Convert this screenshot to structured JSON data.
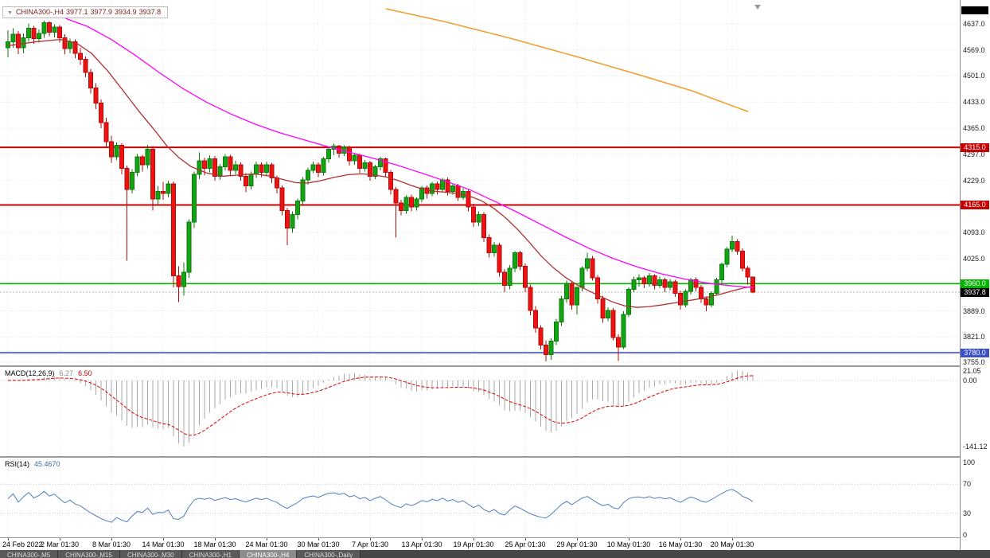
{
  "header": {
    "collapse_icon": "▼",
    "symbol": "CHINA300-,H4",
    "open": "3977.1",
    "high": "3977.9",
    "low": "3934.9",
    "close": "3937.8"
  },
  "tab_bar": {
    "tabs": [
      {
        "label": "CHINA300-,M5",
        "active": false
      },
      {
        "label": "CHINA300-,M15",
        "active": false
      },
      {
        "label": "CHINA300-,M30",
        "active": false
      },
      {
        "label": "CHINA300-,H1",
        "active": false
      },
      {
        "label": "CHINA300-,H4",
        "active": true
      },
      {
        "label": "CHINA300-,Daily",
        "active": false
      }
    ]
  },
  "chart_data": {
    "type": "candlestick",
    "symbol": "CHINA300-,H4",
    "timeframe": "H4",
    "x_start": 10,
    "x_step": 6.5,
    "bars_per_label": 10,
    "price_ylim": [
      3747,
      4699
    ],
    "price_ticks": [
      "4637.0",
      "4569.0",
      "4501.0",
      "4433.0",
      "4365.0",
      "4297.0",
      "4229.0",
      "4093.0",
      "4025.0",
      "3889.0",
      "3821.0",
      "3755.0"
    ],
    "time_labels": [
      "24 Feb 2022",
      "2 Mar 01:30",
      "8 Mar 01:30",
      "14 Mar 01:30",
      "18 Mar 01:30",
      "24 Mar 01:30",
      "30 Mar 01:30",
      "7 Apr 01:30",
      "13 Apr 01:30",
      "19 Apr 01:30",
      "25 Apr 01:30",
      "29 Apr 01:30",
      "10 May 01:30",
      "16 May 01:30",
      "20 May 01:30"
    ],
    "levels": [
      {
        "value": 4315.0,
        "label": "4315.0",
        "color": "#c80000",
        "width": 2
      },
      {
        "value": 4165.0,
        "label": "4165.0",
        "color": "#c80000",
        "width": 2
      },
      {
        "value": 3960.0,
        "label": "3960.0",
        "color": "#00b400",
        "width": 1.6
      },
      {
        "value": 3780.0,
        "label": "3780.0",
        "color": "#3c50c8",
        "width": 1.6
      }
    ],
    "current_price": {
      "value": 3937.8,
      "label": "3937.8",
      "bg": "#000000",
      "line_color": "#b0b0b0"
    },
    "candle_colors": {
      "up_fill": "#12a412",
      "up_stroke": "#0a7d0a",
      "down_fill": "#ee1212",
      "down_stroke": "#b40a0a"
    },
    "overlays": [
      {
        "name": "ma-fast",
        "color": "#b03030",
        "width": 1.3,
        "points": [
          [
            10,
            4580
          ],
          [
            45,
            4590
          ],
          [
            75,
            4596
          ],
          [
            95,
            4588
          ],
          [
            115,
            4560
          ],
          [
            135,
            4515
          ],
          [
            155,
            4462
          ],
          [
            175,
            4408
          ],
          [
            195,
            4358
          ],
          [
            210,
            4318
          ],
          [
            225,
            4288
          ],
          [
            240,
            4265
          ],
          [
            260,
            4248
          ],
          [
            280,
            4240
          ],
          [
            300,
            4243
          ],
          [
            320,
            4246
          ],
          [
            340,
            4240
          ],
          [
            358,
            4230
          ],
          [
            372,
            4223
          ],
          [
            386,
            4222
          ],
          [
            400,
            4227
          ],
          [
            420,
            4237
          ],
          [
            438,
            4244
          ],
          [
            455,
            4246
          ],
          [
            470,
            4243
          ],
          [
            485,
            4238
          ],
          [
            500,
            4229
          ],
          [
            515,
            4217
          ],
          [
            530,
            4207
          ],
          [
            545,
            4201
          ],
          [
            560,
            4198
          ],
          [
            575,
            4195
          ],
          [
            590,
            4188
          ],
          [
            605,
            4176
          ],
          [
            620,
            4157
          ],
          [
            635,
            4132
          ],
          [
            650,
            4102
          ],
          [
            665,
            4068
          ],
          [
            680,
            4032
          ],
          [
            695,
            4002
          ],
          [
            710,
            3977
          ],
          [
            725,
            3957
          ],
          [
            740,
            3941
          ],
          [
            755,
            3926
          ],
          [
            770,
            3912
          ],
          [
            785,
            3902
          ],
          [
            800,
            3898
          ],
          [
            815,
            3900
          ],
          [
            830,
            3904
          ],
          [
            845,
            3909
          ],
          [
            860,
            3914
          ],
          [
            875,
            3919
          ],
          [
            890,
            3925
          ],
          [
            905,
            3932
          ],
          [
            920,
            3941
          ],
          [
            935,
            3949
          ],
          [
            946,
            3953
          ]
        ]
      },
      {
        "name": "ma-slow",
        "color": "#ff00ff",
        "width": 1.3,
        "points": [
          [
            55,
            4678
          ],
          [
            85,
            4649
          ],
          [
            110,
            4630
          ],
          [
            140,
            4596
          ],
          [
            170,
            4555
          ],
          [
            200,
            4510
          ],
          [
            230,
            4468
          ],
          [
            260,
            4432
          ],
          [
            290,
            4402
          ],
          [
            320,
            4376
          ],
          [
            350,
            4354
          ],
          [
            380,
            4336
          ],
          [
            410,
            4318
          ],
          [
            440,
            4302
          ],
          [
            470,
            4286
          ],
          [
            500,
            4268
          ],
          [
            530,
            4248
          ],
          [
            560,
            4227
          ],
          [
            590,
            4205
          ],
          [
            620,
            4176
          ],
          [
            650,
            4146
          ],
          [
            680,
            4114
          ],
          [
            710,
            4082
          ],
          [
            740,
            4052
          ],
          [
            770,
            4026
          ],
          [
            800,
            4004
          ],
          [
            830,
            3986
          ],
          [
            860,
            3972
          ],
          [
            890,
            3961
          ],
          [
            920,
            3954
          ],
          [
            946,
            3950
          ]
        ]
      },
      {
        "name": "trendline-orange",
        "color": "#f0a030",
        "width": 1.6,
        "points": [
          [
            485,
            4676
          ],
          [
            560,
            4642
          ],
          [
            640,
            4600
          ],
          [
            720,
            4554
          ],
          [
            800,
            4506
          ],
          [
            870,
            4462
          ],
          [
            940,
            4408
          ]
        ]
      }
    ],
    "candles": [
      [
        4575,
        4620,
        4550,
        4590
      ],
      [
        4590,
        4625,
        4575,
        4610
      ],
      [
        4610,
        4618,
        4558,
        4575
      ],
      [
        4575,
        4612,
        4560,
        4600
      ],
      [
        4600,
        4638,
        4590,
        4625
      ],
      [
        4625,
        4632,
        4585,
        4598
      ],
      [
        4598,
        4622,
        4588,
        4612
      ],
      [
        4612,
        4645,
        4600,
        4640
      ],
      [
        4640,
        4644,
        4605,
        4615
      ],
      [
        4615,
        4636,
        4602,
        4628
      ],
      [
        4628,
        4634,
        4588,
        4600
      ],
      [
        4600,
        4610,
        4558,
        4572
      ],
      [
        4572,
        4598,
        4560,
        4590
      ],
      [
        4590,
        4596,
        4548,
        4560
      ],
      [
        4560,
        4575,
        4530,
        4545
      ],
      [
        4545,
        4552,
        4498,
        4510
      ],
      [
        4510,
        4520,
        4455,
        4470
      ],
      [
        4470,
        4482,
        4415,
        4430
      ],
      [
        4430,
        4440,
        4365,
        4380
      ],
      [
        4380,
        4392,
        4315,
        4330
      ],
      [
        4330,
        4345,
        4275,
        4290
      ],
      [
        4290,
        4328,
        4282,
        4320
      ],
      [
        4320,
        4326,
        4245,
        4260
      ],
      [
        4260,
        4268,
        4020,
        4205
      ],
      [
        4205,
        4258,
        4195,
        4250
      ],
      [
        4250,
        4298,
        4240,
        4290
      ],
      [
        4290,
        4296,
        4252,
        4270
      ],
      [
        4270,
        4322,
        4260,
        4310
      ],
      [
        4310,
        4318,
        4150,
        4180
      ],
      [
        4180,
        4215,
        4165,
        4200
      ],
      [
        4200,
        4225,
        4178,
        4195
      ],
      [
        4195,
        4228,
        4185,
        4220
      ],
      [
        4220,
        4226,
        3950,
        3980
      ],
      [
        3980,
        4005,
        3912,
        3952
      ],
      [
        3952,
        4015,
        3928,
        3990
      ],
      [
        3990,
        4128,
        3975,
        4120
      ],
      [
        4120,
        4252,
        4105,
        4245
      ],
      [
        4245,
        4302,
        4232,
        4280
      ],
      [
        4280,
        4288,
        4242,
        4260
      ],
      [
        4260,
        4295,
        4250,
        4285
      ],
      [
        4285,
        4292,
        4228,
        4240
      ],
      [
        4240,
        4272,
        4230,
        4265
      ],
      [
        4265,
        4298,
        4255,
        4290
      ],
      [
        4290,
        4296,
        4242,
        4255
      ],
      [
        4255,
        4280,
        4245,
        4270
      ],
      [
        4270,
        4276,
        4228,
        4240
      ],
      [
        4240,
        4248,
        4198,
        4215
      ],
      [
        4215,
        4252,
        4205,
        4245
      ],
      [
        4245,
        4278,
        4235,
        4270
      ],
      [
        4270,
        4276,
        4238,
        4250
      ],
      [
        4250,
        4278,
        4240,
        4270
      ],
      [
        4270,
        4275,
        4222,
        4235
      ],
      [
        4235,
        4242,
        4195,
        4210
      ],
      [
        4210,
        4216,
        4138,
        4150
      ],
      [
        4150,
        4158,
        4060,
        4105
      ],
      [
        4105,
        4148,
        4092,
        4140
      ],
      [
        4140,
        4182,
        4128,
        4175
      ],
      [
        4175,
        4238,
        4165,
        4230
      ],
      [
        4230,
        4262,
        4218,
        4255
      ],
      [
        4255,
        4278,
        4248,
        4270
      ],
      [
        4270,
        4276,
        4238,
        4250
      ],
      [
        4250,
        4290,
        4242,
        4285
      ],
      [
        4285,
        4315,
        4275,
        4310
      ],
      [
        4310,
        4325,
        4295,
        4318
      ],
      [
        4318,
        4322,
        4288,
        4300
      ],
      [
        4300,
        4320,
        4292,
        4315
      ],
      [
        4315,
        4319,
        4268,
        4280
      ],
      [
        4280,
        4300,
        4270,
        4295
      ],
      [
        4295,
        4299,
        4248,
        4260
      ],
      [
        4260,
        4282,
        4252,
        4275
      ],
      [
        4275,
        4280,
        4228,
        4240
      ],
      [
        4240,
        4270,
        4232,
        4265
      ],
      [
        4265,
        4290,
        4255,
        4285
      ],
      [
        4285,
        4288,
        4238,
        4250
      ],
      [
        4250,
        4256,
        4192,
        4205
      ],
      [
        4205,
        4212,
        4080,
        4170
      ],
      [
        4170,
        4178,
        4138,
        4150
      ],
      [
        4150,
        4190,
        4142,
        4185
      ],
      [
        4185,
        4192,
        4148,
        4160
      ],
      [
        4160,
        4185,
        4150,
        4180
      ],
      [
        4180,
        4215,
        4172,
        4210
      ],
      [
        4210,
        4216,
        4182,
        4195
      ],
      [
        4195,
        4225,
        4188,
        4220
      ],
      [
        4220,
        4226,
        4192,
        4205
      ],
      [
        4205,
        4235,
        4198,
        4230
      ],
      [
        4230,
        4236,
        4190,
        4200
      ],
      [
        4200,
        4220,
        4192,
        4215
      ],
      [
        4215,
        4220,
        4175,
        4185
      ],
      [
        4185,
        4208,
        4178,
        4200
      ],
      [
        4200,
        4206,
        4148,
        4160
      ],
      [
        4160,
        4168,
        4108,
        4120
      ],
      [
        4120,
        4148,
        4110,
        4140
      ],
      [
        4140,
        4146,
        4068,
        4080
      ],
      [
        4080,
        4088,
        4028,
        4040
      ],
      [
        4040,
        4068,
        4030,
        4060
      ],
      [
        4060,
        4066,
        3978,
        3990
      ],
      [
        3990,
        3998,
        3938,
        3955
      ],
      [
        3955,
        4008,
        3945,
        4000
      ],
      [
        4000,
        4045,
        3990,
        4040
      ],
      [
        4040,
        4046,
        3995,
        4005
      ],
      [
        4005,
        4012,
        3938,
        3950
      ],
      [
        3950,
        3958,
        3878,
        3890
      ],
      [
        3890,
        3902,
        3832,
        3845
      ],
      [
        3845,
        3852,
        3788,
        3800
      ],
      [
        3800,
        3812,
        3757,
        3775
      ],
      [
        3775,
        3818,
        3762,
        3810
      ],
      [
        3810,
        3868,
        3800,
        3860
      ],
      [
        3860,
        3928,
        3850,
        3920
      ],
      [
        3920,
        3968,
        3910,
        3960
      ],
      [
        3960,
        3965,
        3892,
        3905
      ],
      [
        3905,
        3952,
        3880,
        3950
      ],
      [
        3950,
        4005,
        3940,
        4000
      ],
      [
        4000,
        4040,
        3992,
        4025
      ],
      [
        4025,
        4032,
        3968,
        3975
      ],
      [
        3975,
        3982,
        3908,
        3920
      ],
      [
        3920,
        3928,
        3858,
        3870
      ],
      [
        3870,
        3898,
        3862,
        3890
      ],
      [
        3890,
        3896,
        3812,
        3820
      ],
      [
        3820,
        3828,
        3758,
        3795
      ],
      [
        3795,
        3888,
        3790,
        3880
      ],
      [
        3880,
        3950,
        3872,
        3945
      ],
      [
        3945,
        3978,
        3938,
        3970
      ],
      [
        3970,
        3985,
        3952,
        3975
      ],
      [
        3975,
        3980,
        3948,
        3960
      ],
      [
        3960,
        3988,
        3952,
        3980
      ],
      [
        3980,
        3984,
        3945,
        3955
      ],
      [
        3955,
        3978,
        3948,
        3970
      ],
      [
        3970,
        3975,
        3938,
        3950
      ],
      [
        3950,
        3972,
        3942,
        3965
      ],
      [
        3965,
        3970,
        3925,
        3935
      ],
      [
        3935,
        3942,
        3892,
        3905
      ],
      [
        3905,
        3945,
        3898,
        3940
      ],
      [
        3940,
        3975,
        3932,
        3970
      ],
      [
        3970,
        3976,
        3940,
        3950
      ],
      [
        3950,
        3956,
        3910,
        3920
      ],
      [
        3920,
        3926,
        3888,
        3905
      ],
      [
        3905,
        3940,
        3898,
        3935
      ],
      [
        3935,
        3975,
        3928,
        3970
      ],
      [
        3970,
        4015,
        3962,
        4010
      ],
      [
        4010,
        4055,
        4002,
        4050
      ],
      [
        4050,
        4085,
        4042,
        4070
      ],
      [
        4070,
        4076,
        4035,
        4045
      ],
      [
        4045,
        4052,
        3992,
        4000
      ],
      [
        4000,
        4006,
        3958,
        3977
      ],
      [
        3977.1,
        3977.9,
        3934.9,
        3937.8
      ]
    ],
    "macd": {
      "label": "MACD(12,26,9)",
      "main_value": "6.27",
      "signal_value": "6.50",
      "fast": 12,
      "slow": 26,
      "signal": 9,
      "ylim": [
        -161.5,
        28.9
      ],
      "pos_max": 21.05,
      "neg_min": -141.12,
      "axis_labels": [
        {
          "text": "21.05",
          "value": 21.05
        },
        {
          "text": "0.00",
          "value": 0
        },
        {
          "text": "-141.12",
          "value": -141.12
        }
      ],
      "hist_color": "#a8a8a8",
      "signal_color": "#e00000"
    },
    "rsi": {
      "label": "RSI(14)",
      "value": "45.4670",
      "period": 14,
      "ylim": [
        -3.3,
        106.6
      ],
      "axis_labels": [
        {
          "text": "100",
          "value": 100
        },
        {
          "text": "70",
          "value": 70
        },
        {
          "text": "30",
          "value": 30
        },
        {
          "text": "0",
          "value": 0
        }
      ],
      "line_color": "#4f7dbf",
      "levels": [
        70,
        30
      ]
    }
  }
}
